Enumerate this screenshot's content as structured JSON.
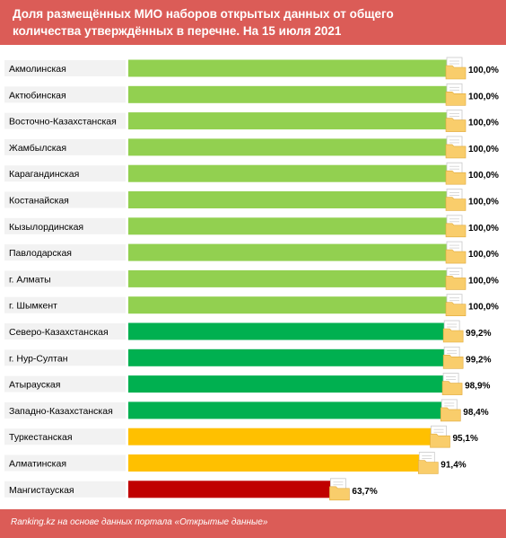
{
  "header": {
    "title_line1": "Доля размещённых МИО наборов открытых данных от общего",
    "title_line2": "количества утверждённых в перечне. На 15 июля 2021"
  },
  "footer": {
    "source": "Ranking.kz на основе данных портала «Открытые данные»"
  },
  "colors": {
    "header_bg": "#db5c57",
    "bar_100": "#92d050",
    "bar_99": "#00b050",
    "bar_9x": "#ffc000",
    "bar_low": "#c00000",
    "label_box": "#f2f2f2",
    "folder_icon": "#f9cd6b"
  },
  "icons": {
    "bar_end": "folder-icon"
  },
  "chart_data": {
    "type": "bar",
    "orientation": "horizontal",
    "categories": [
      "Акмолинская",
      "Актюбинская",
      "Восточно-Казахстанская",
      "Жамбылская",
      "Карагандинская",
      "Костанайская",
      "Кызылординская",
      "Павлодарская",
      "г. Алматы",
      "г. Шымкент",
      "Северо-Казахстанская",
      "г. Нур-Султан",
      "Атырауская",
      "Западно-Казахстанская",
      "Туркестанская",
      "Алматинская",
      "Мангистауская"
    ],
    "values": [
      100.0,
      100.0,
      100.0,
      100.0,
      100.0,
      100.0,
      100.0,
      100.0,
      100.0,
      100.0,
      99.2,
      99.2,
      98.9,
      98.4,
      95.1,
      91.4,
      63.7
    ],
    "value_labels": [
      "100,0%",
      "100,0%",
      "100,0%",
      "100,0%",
      "100,0%",
      "100,0%",
      "100,0%",
      "100,0%",
      "100,0%",
      "100,0%",
      "99,2%",
      "99,2%",
      "98,9%",
      "98,4%",
      "95,1%",
      "91,4%",
      "63,7%"
    ],
    "bar_colors": [
      "#92d050",
      "#92d050",
      "#92d050",
      "#92d050",
      "#92d050",
      "#92d050",
      "#92d050",
      "#92d050",
      "#92d050",
      "#92d050",
      "#00b050",
      "#00b050",
      "#00b050",
      "#00b050",
      "#ffc000",
      "#ffc000",
      "#c00000"
    ],
    "xlim": [
      0,
      100
    ],
    "grid": false,
    "legend": "none"
  }
}
